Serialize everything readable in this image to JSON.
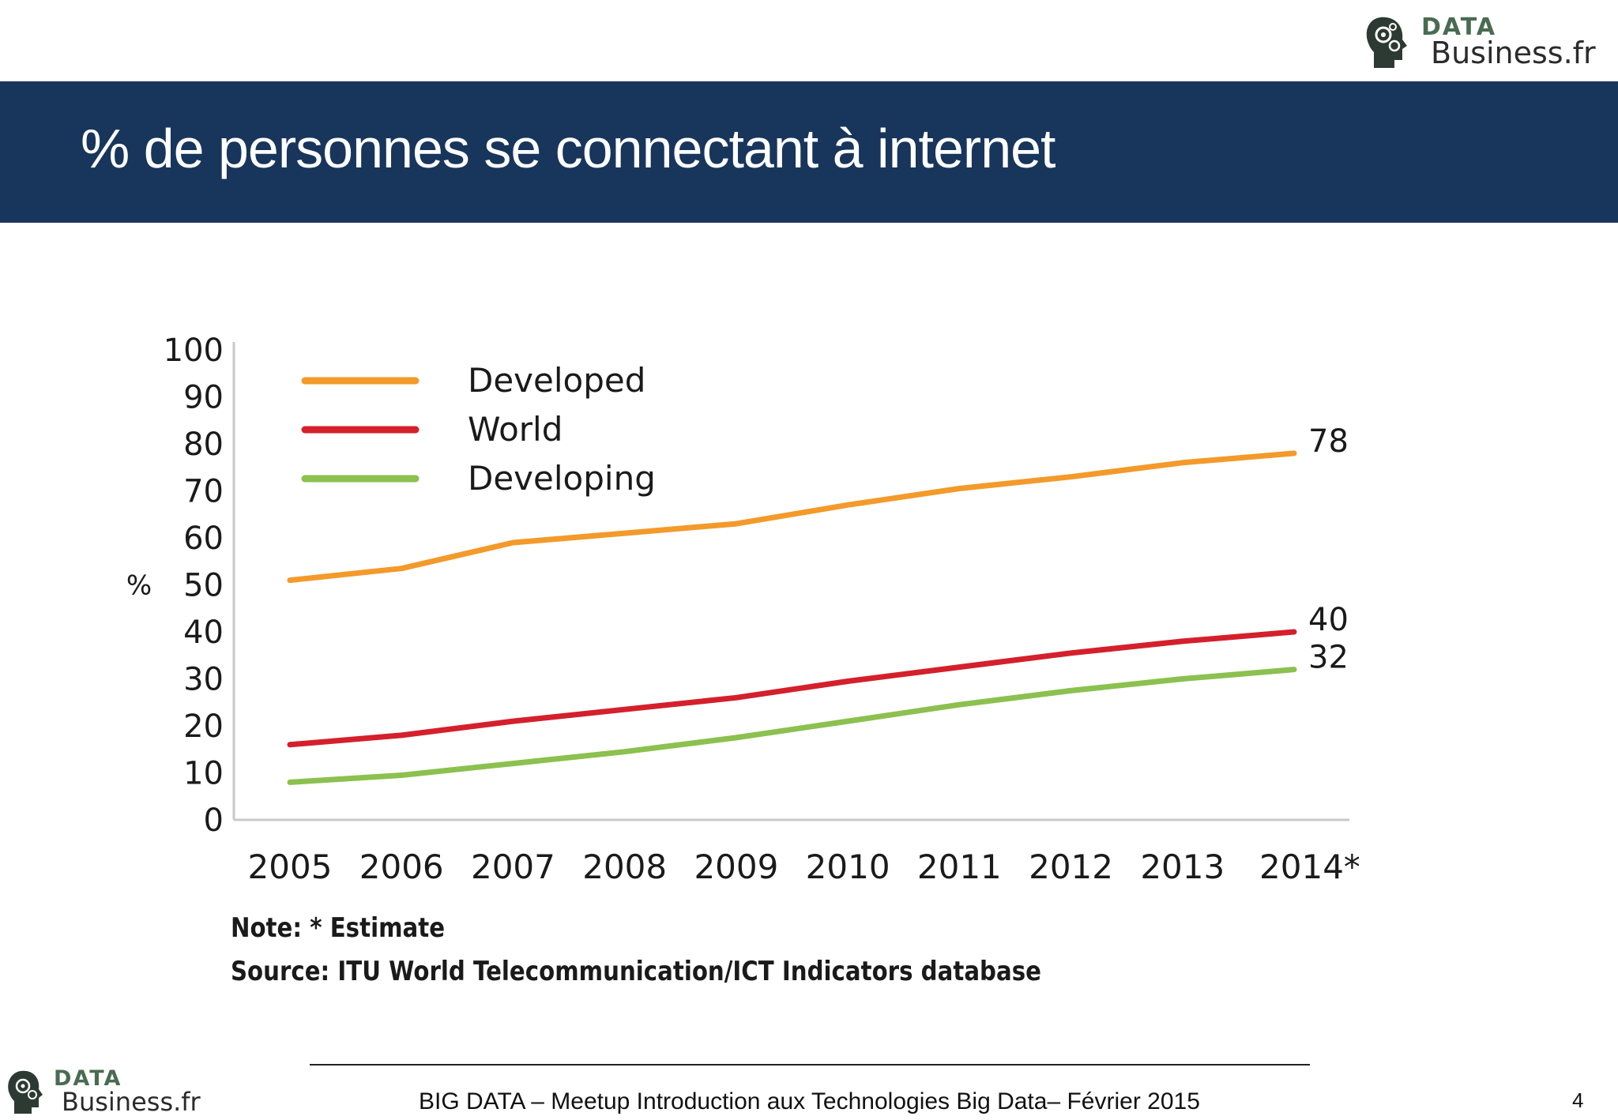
{
  "header": {
    "title": "% de personnes se connectant à internet",
    "logo": {
      "data_text": "DATA",
      "business_text": "Business.fr",
      "icon": "brain-gears-icon",
      "accent_color": "#4a6b52"
    }
  },
  "colors": {
    "title_bar": "#18355c",
    "developed": "#f39a2b",
    "world": "#d4202c",
    "developing": "#8cc04f"
  },
  "chart_data": {
    "type": "line",
    "title": "",
    "xlabel": "",
    "ylabel": "%",
    "x": [
      "2005",
      "2006",
      "2007",
      "2008",
      "2009",
      "2010",
      "2011",
      "2012",
      "2013",
      "2014*"
    ],
    "ylim": [
      0,
      100
    ],
    "yticks": [
      "0",
      "10",
      "20",
      "30",
      "40",
      "50",
      "60",
      "70",
      "80",
      "90",
      "100"
    ],
    "grid": false,
    "legend_position": "top-left",
    "series": [
      {
        "name": "Developed",
        "color": "#f39a2b",
        "values": [
          51,
          53.5,
          59,
          61,
          63,
          67,
          70.5,
          73,
          76,
          78
        ],
        "end_label": "78"
      },
      {
        "name": "World",
        "color": "#d4202c",
        "values": [
          16,
          18,
          21,
          23.5,
          26,
          29.5,
          32.5,
          35.5,
          38,
          40
        ],
        "end_label": "40"
      },
      {
        "name": "Developing",
        "color": "#8cc04f",
        "values": [
          8,
          9.5,
          12,
          14.5,
          17.5,
          21,
          24.5,
          27.5,
          30,
          32
        ],
        "end_label": "32"
      }
    ]
  },
  "notes": {
    "note": "Note: * Estimate",
    "source": "Source: ITU World Telecommunication/ICT Indicators database"
  },
  "footer": {
    "text": "BIG DATA – Meetup Introduction aux Technologies Big Data– Février 2015",
    "page_number": "4",
    "logo": {
      "data_text": "DATA",
      "business_text": "Business.fr",
      "icon": "brain-gears-icon"
    }
  }
}
